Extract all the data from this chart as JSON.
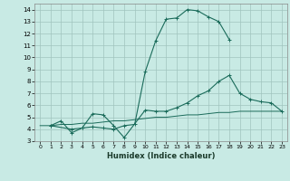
{
  "bg_color": "#c8eae4",
  "grid_color": "#a0c4be",
  "line_color": "#1a6b5a",
  "xlabel": "Humidex (Indice chaleur)",
  "xlim": [
    -0.5,
    23.5
  ],
  "ylim": [
    3,
    14.5
  ],
  "xticks": [
    0,
    1,
    2,
    3,
    4,
    5,
    6,
    7,
    8,
    9,
    10,
    11,
    12,
    13,
    14,
    15,
    16,
    17,
    18,
    19,
    20,
    21,
    22,
    23
  ],
  "yticks": [
    3,
    4,
    5,
    6,
    7,
    8,
    9,
    10,
    11,
    12,
    13,
    14
  ],
  "line1_x": [
    1,
    2,
    3,
    4,
    5,
    6,
    7,
    8,
    9,
    10,
    11,
    12,
    13,
    14,
    15,
    16,
    17,
    18
  ],
  "line1_y": [
    4.3,
    4.7,
    3.7,
    4.1,
    4.2,
    4.1,
    4.0,
    4.3,
    4.4,
    8.8,
    11.4,
    13.2,
    13.3,
    14.0,
    13.9,
    13.4,
    13.0,
    11.5
  ],
  "line2_x": [
    1,
    3,
    4,
    5,
    6,
    7,
    8,
    10,
    11,
    12,
    13,
    14,
    15,
    16,
    17,
    18,
    19,
    20,
    21,
    22,
    23
  ],
  "line2_y": [
    4.3,
    4.0,
    4.1,
    5.3,
    5.2,
    4.3,
    3.3,
    5.6,
    5.5,
    5.5,
    5.8,
    6.2,
    6.8,
    7.2,
    8.0,
    8.5,
    7.0,
    6.5,
    6.3,
    6.2,
    5.5
  ],
  "line3_x": [
    0,
    1,
    2,
    3,
    4,
    5,
    6,
    7,
    8,
    9,
    10,
    11,
    12,
    13,
    14,
    15,
    16,
    17,
    18,
    19,
    20,
    21,
    22,
    23
  ],
  "line3_y": [
    4.3,
    4.3,
    4.4,
    4.4,
    4.5,
    4.5,
    4.6,
    4.7,
    4.7,
    4.8,
    4.9,
    5.0,
    5.0,
    5.1,
    5.2,
    5.2,
    5.3,
    5.4,
    5.4,
    5.5,
    5.5,
    5.5,
    5.5,
    5.5
  ]
}
